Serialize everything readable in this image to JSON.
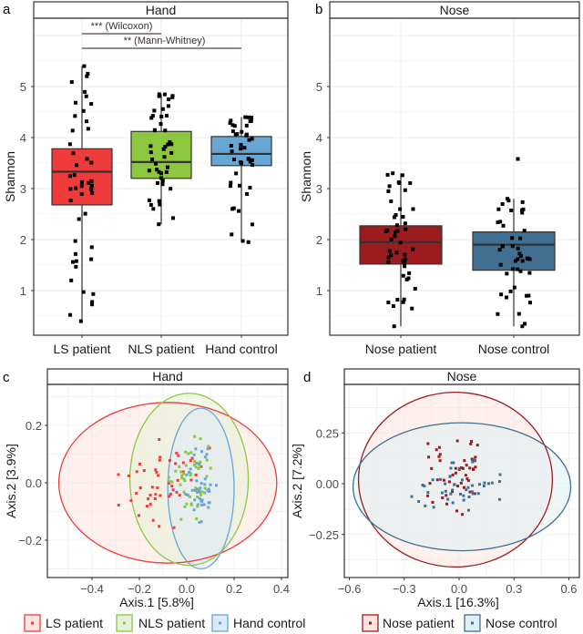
{
  "chart_data": [
    {
      "panel": "a",
      "type": "box",
      "title": "Hand",
      "ylabel": "Shannon",
      "ylim": [
        0.13,
        6.3
      ],
      "yticks": [
        1,
        2,
        3,
        4,
        5
      ],
      "categories": [
        "LS patient",
        "NLS patient",
        "Hand control"
      ],
      "colors": [
        "#ee3b3b",
        "#8dc63f",
        "#68a6d4"
      ],
      "boxes": [
        {
          "min": 0.4,
          "q1": 2.68,
          "median": 3.33,
          "q3": 3.78,
          "max": 5.4,
          "n": 48
        },
        {
          "min": 2.3,
          "q1": 3.2,
          "median": 3.52,
          "q3": 4.12,
          "max": 4.85,
          "n": 46
        },
        {
          "min": 1.95,
          "q1": 3.45,
          "median": 3.68,
          "q3": 4.02,
          "max": 4.4,
          "n": 44
        }
      ],
      "annotations": [
        {
          "text": "*** (Wilcoxon)",
          "from": "LS patient",
          "to": "NLS patient"
        },
        {
          "text": "** (Mann-Whitney)",
          "from": "LS patient",
          "to": "Hand control"
        }
      ]
    },
    {
      "panel": "b",
      "type": "box",
      "title": "Nose",
      "ylabel": "Shannon",
      "ylim": [
        0.13,
        6.3
      ],
      "yticks": [
        1,
        2,
        3,
        4,
        5
      ],
      "categories": [
        "Nose patient",
        "Nose control"
      ],
      "colors": [
        "#9b1c1f",
        "#406f91"
      ],
      "boxes": [
        {
          "min": 0.3,
          "q1": 1.52,
          "median": 1.95,
          "q3": 2.27,
          "max": 3.3,
          "n": 48
        },
        {
          "min": 0.3,
          "q1": 1.4,
          "median": 1.9,
          "q3": 2.15,
          "max": 2.8,
          "outlier": 3.58,
          "n": 46
        }
      ]
    },
    {
      "panel": "c",
      "type": "scatter",
      "title": "Hand",
      "xlabel": "Axis.1   [5.8%]",
      "ylabel": "Axis.2   [3.9%]",
      "xticks": [
        -0.4,
        -0.2,
        0.0,
        0.2,
        0.4
      ],
      "xtick_labels": [
        "−0.4",
        "−0.2",
        "0.0",
        "0.2",
        "0.4"
      ],
      "yticks": [
        -0.2,
        0.0,
        0.2
      ],
      "ytick_labels": [
        "−0.2",
        "0.0",
        "0.2"
      ],
      "series": [
        {
          "name": "LS patient",
          "color": "#ee3b3b",
          "fill": "#fde3df",
          "n": 48,
          "center": [
            -0.08,
            0.0
          ],
          "radii": [
            0.46,
            0.28
          ]
        },
        {
          "name": "NLS patient",
          "color": "#8dc63f",
          "fill": "#e6f2d8",
          "n": 46,
          "center": [
            0.01,
            0.012
          ],
          "radii": [
            0.25,
            0.3
          ]
        },
        {
          "name": "Hand control",
          "color": "#68a6d4",
          "fill": "#dceaf4",
          "n": 44,
          "center": [
            0.06,
            -0.02
          ],
          "radii": [
            0.14,
            0.28
          ]
        }
      ],
      "legend": "bottom"
    },
    {
      "panel": "d",
      "type": "scatter",
      "title": "Nose",
      "xlabel": "Axis.1   [16.3%]",
      "ylabel": "Axis.2   [7.2%]",
      "xticks": [
        -0.6,
        -0.3,
        0.0,
        0.3,
        0.6
      ],
      "xtick_labels": [
        "−0.6",
        "−0.3",
        "0.0",
        "0.3",
        "0.6"
      ],
      "yticks": [
        -0.25,
        0.0,
        0.25
      ],
      "ytick_labels": [
        "−0.25",
        "0.00",
        "0.25"
      ],
      "series": [
        {
          "name": "Nose patient",
          "color": "#9b1c1f",
          "fill": "#fde3df",
          "n": 48,
          "center": [
            -0.02,
            0.02
          ],
          "radii": [
            0.53,
            0.43
          ]
        },
        {
          "name": "Nose control",
          "color": "#406f91",
          "fill": "#dff0f3",
          "n": 46,
          "center": [
            0.015,
            -0.015
          ],
          "radii": [
            0.595,
            0.315
          ]
        }
      ],
      "legend": "bottom"
    }
  ]
}
